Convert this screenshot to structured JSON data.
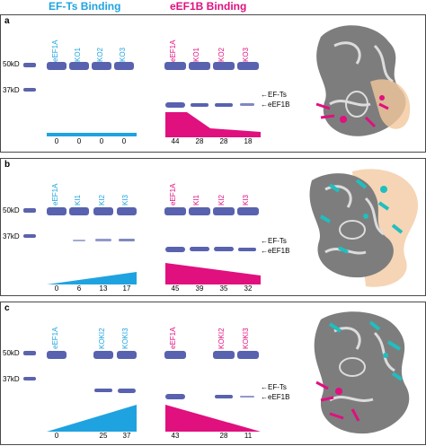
{
  "headers": {
    "left": "EF-Ts Binding",
    "right": "eEF1B Binding"
  },
  "colors": {
    "cyan": "#1fa3e0",
    "magenta": "#e0107f",
    "band": "#4a55a8",
    "structure_gray": "#8c8c8c",
    "structure_orange": "#f2c79c"
  },
  "markers": {
    "m50": "50kD",
    "m37": "37kD"
  },
  "annotations": {
    "efts": "EF-Ts",
    "eef1b": "eEF1B"
  },
  "panels": [
    {
      "label": "a",
      "left_lanes": [
        "eEF1A",
        "KO1",
        "KO2",
        "KO3"
      ],
      "left_values": [
        "0",
        "0",
        "0",
        "0"
      ],
      "right_lanes": [
        "eEF1A",
        "KO1",
        "KO2",
        "KO3"
      ],
      "right_values": [
        "44",
        "28",
        "28",
        "18"
      ]
    },
    {
      "label": "b",
      "left_lanes": [
        "eEF1A",
        "KI1",
        "KI2",
        "KI3"
      ],
      "left_values": [
        "0",
        "6",
        "13",
        "17"
      ],
      "right_lanes": [
        "eEF1A",
        "KI1",
        "KI2",
        "KI3"
      ],
      "right_values": [
        "45",
        "39",
        "35",
        "32"
      ]
    },
    {
      "label": "c",
      "left_lanes": [
        "eEF1A",
        "KOKI2",
        "KOKI3"
      ],
      "left_values": [
        "0",
        "25",
        "37"
      ],
      "right_lanes": [
        "eEF1A",
        "KOKI2",
        "KOKI3"
      ],
      "right_values": [
        "43",
        "28",
        "11"
      ]
    }
  ]
}
